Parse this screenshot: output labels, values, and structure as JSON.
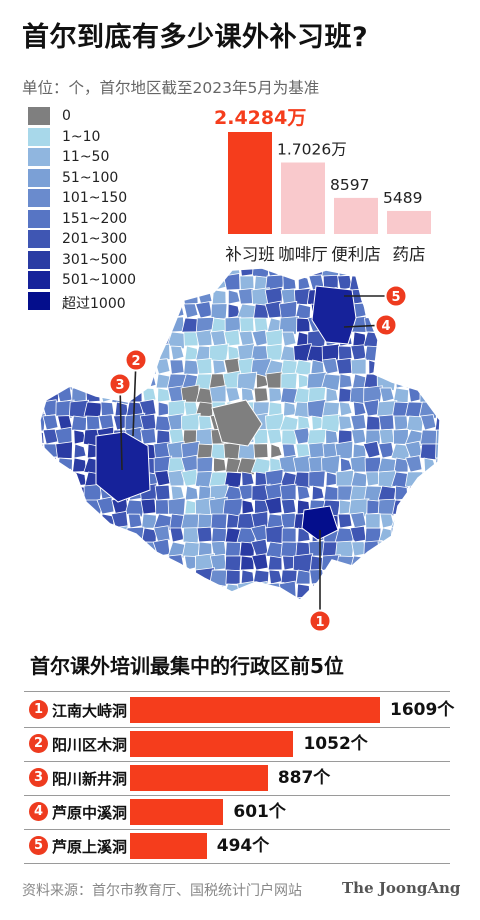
{
  "header": {
    "title": "首尔到底有多少课外补习班?",
    "subtitle": "单位：个，首尔地区截至2023年5月为基准"
  },
  "legend": [
    {
      "label": "0",
      "color": "#7f7f7f"
    },
    {
      "label": "1~10",
      "color": "#a8d8ea"
    },
    {
      "label": "11~50",
      "color": "#90b6df"
    },
    {
      "label": "51~100",
      "color": "#7ba0d6"
    },
    {
      "label": "101~150",
      "color": "#6a8bcd"
    },
    {
      "label": "151~200",
      "color": "#5775c4"
    },
    {
      "label": "201~300",
      "color": "#3f56b3"
    },
    {
      "label": "301~500",
      "color": "#2a3ba3"
    },
    {
      "label": "501~1000",
      "color": "#16229a"
    },
    {
      "label": "超过1000",
      "color": "#040e8c"
    }
  ],
  "chart_data": [
    {
      "type": "bar",
      "title": "",
      "categories": [
        "补习班",
        "咖啡厅",
        "便利店",
        "药店"
      ],
      "values": [
        24284,
        17026,
        8597,
        5489
      ],
      "value_labels": [
        "2.4284万",
        "1.7026万",
        "8597",
        "5489"
      ],
      "highlight_color": "#f53d1c",
      "base_color": "#f9c9cc",
      "ylim": [
        0,
        24284
      ]
    },
    {
      "type": "bar",
      "title": "首尔课外培训最集中的行政区前5位",
      "categories": [
        "江南大峙洞",
        "阳川区木洞",
        "阳川新井洞",
        "芦原中溪洞",
        "芦原上溪洞"
      ],
      "values": [
        1609,
        1052,
        887,
        601,
        494
      ],
      "value_labels": [
        "1609个",
        "1052个",
        "887个",
        "601个",
        "494个"
      ],
      "ranks": [
        "1",
        "2",
        "3",
        "4",
        "5"
      ],
      "color": "#f53d1c",
      "xlim": [
        0,
        1609
      ]
    }
  ],
  "map": {
    "markers": [
      "1",
      "2",
      "3",
      "4",
      "5"
    ],
    "marker_color": "#ee3b1f"
  },
  "footer": {
    "source": "资料来源：首尔市教育厅、国税统计门户网站",
    "brand": "The JoongAng"
  }
}
